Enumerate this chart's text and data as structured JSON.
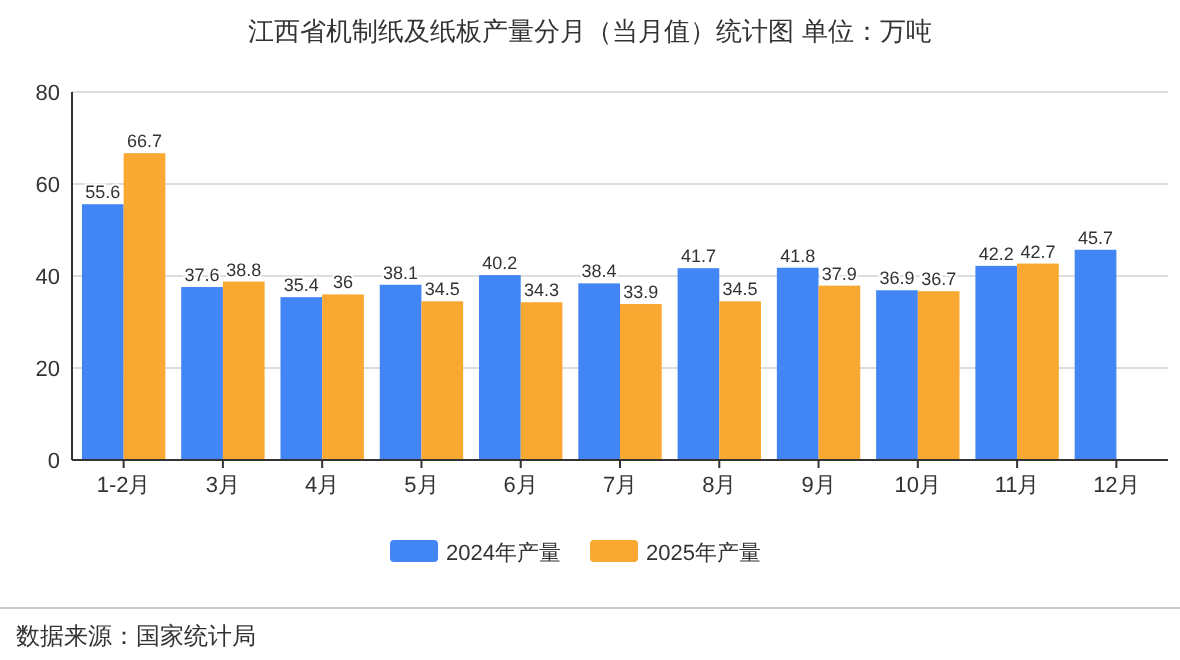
{
  "chart_data": {
    "type": "bar",
    "title": "江西省机制纸及纸板产量分月（当月值）统计图 单位：万吨",
    "categories": [
      "1-2月",
      "3月",
      "4月",
      "5月",
      "6月",
      "7月",
      "8月",
      "9月",
      "10月",
      "11月",
      "12月"
    ],
    "series": [
      {
        "name": "2024年产量",
        "color": "#4285f4",
        "values": [
          55.6,
          37.6,
          35.4,
          38.1,
          40.2,
          38.4,
          41.7,
          41.8,
          36.9,
          42.2,
          45.7
        ]
      },
      {
        "name": "2025年产量",
        "color": "#f9a831",
        "values": [
          66.7,
          38.8,
          36,
          34.5,
          34.3,
          33.9,
          34.5,
          37.9,
          36.7,
          42.7,
          null
        ]
      }
    ],
    "ylim": [
      0,
      80
    ],
    "yticks": [
      0,
      20,
      40,
      60,
      80
    ],
    "grid": "y",
    "legend": "bottom",
    "data_labels": true,
    "annotations": [
      "数据来源：国家统计局"
    ]
  }
}
